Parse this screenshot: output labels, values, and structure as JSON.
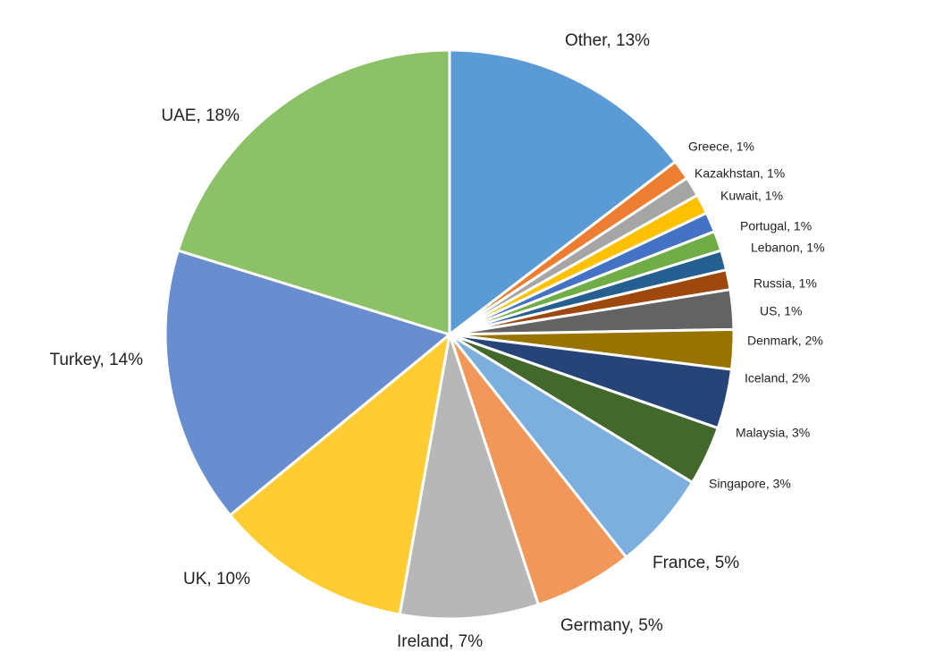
{
  "chart_data": {
    "type": "pie",
    "values": [
      13,
      1,
      1,
      1,
      1,
      1,
      1,
      1,
      2,
      2,
      3,
      3,
      5,
      5,
      7,
      10,
      14,
      18
    ],
    "value_labels": [
      "Other, 13%",
      "Greece, 1%",
      "Kazakhstan, 1%",
      "Kuwait, 1%",
      "Portugal, 1%",
      "Lebanon, 1%",
      "Russia, 1%",
      "US, 1%",
      "Denmark, 2%",
      "Iceland, 2%",
      "Malaysia, 3%",
      "Singapore, 3%",
      "France, 5%",
      "Germany, 5%",
      "Ireland, 7%",
      "UK, 10%",
      "Turkey, 14%",
      "UAE, 18%"
    ],
    "colors": [
      "#5b9bd5",
      "#ed7d31",
      "#a5a5a5",
      "#ffc000",
      "#4472c4",
      "#70ad47",
      "#255e91",
      "#9e480e",
      "#636363",
      "#997300",
      "#264478",
      "#43682b",
      "#7cafdd",
      "#f1975a",
      "#b7b7b7",
      "#ffcd33",
      "#698ed0",
      "#8cc168"
    ]
  }
}
